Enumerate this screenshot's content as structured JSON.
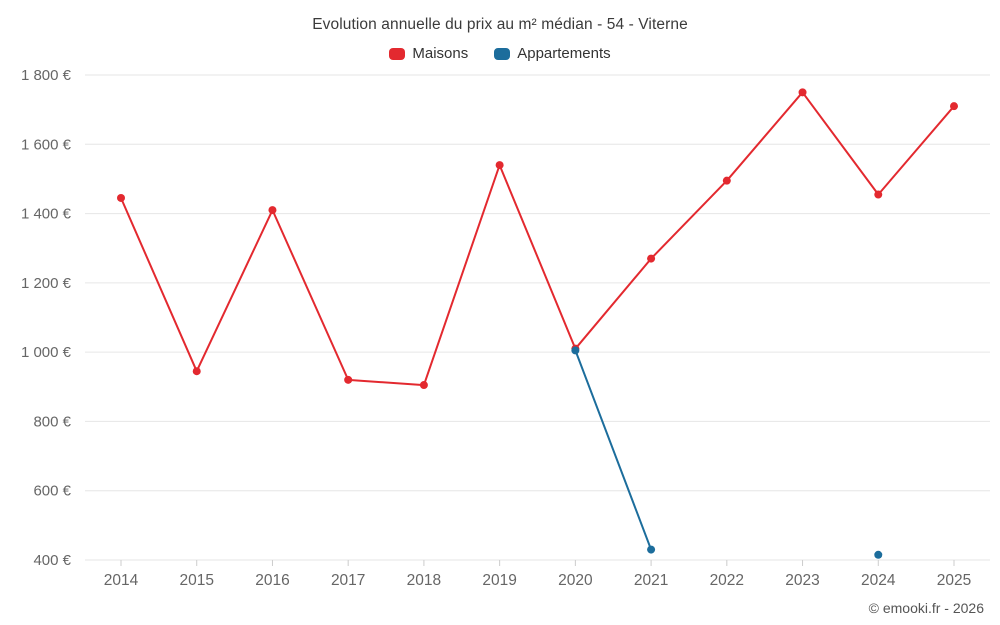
{
  "title": "Evolution annuelle du prix au m² médian - 54 - Viterne",
  "credit": "© emooki.fr - 2026",
  "legend": [
    {
      "label": "Maisons",
      "color": "#e3292f"
    },
    {
      "label": "Appartements",
      "color": "#1c6d9c"
    }
  ],
  "chart_data": {
    "type": "line",
    "title": "Evolution annuelle du prix au m² médian - 54 - Viterne",
    "x": [
      2014,
      2015,
      2016,
      2017,
      2018,
      2019,
      2020,
      2021,
      2022,
      2023,
      2024,
      2025
    ],
    "series": [
      {
        "name": "Maisons",
        "color": "#e3292f",
        "values": [
          1445,
          945,
          1410,
          920,
          905,
          1540,
          1010,
          1270,
          1495,
          1750,
          1455,
          1710
        ]
      },
      {
        "name": "Appartements",
        "color": "#1c6d9c",
        "values": [
          null,
          null,
          null,
          null,
          null,
          null,
          1005,
          430,
          null,
          null,
          415,
          null
        ]
      }
    ],
    "xlabel": "",
    "ylabel": "",
    "ylim": [
      400,
      1800
    ],
    "ytick_step": 200,
    "ytick_suffix": "€",
    "grid": "horizontal",
    "legend_position": "top"
  }
}
